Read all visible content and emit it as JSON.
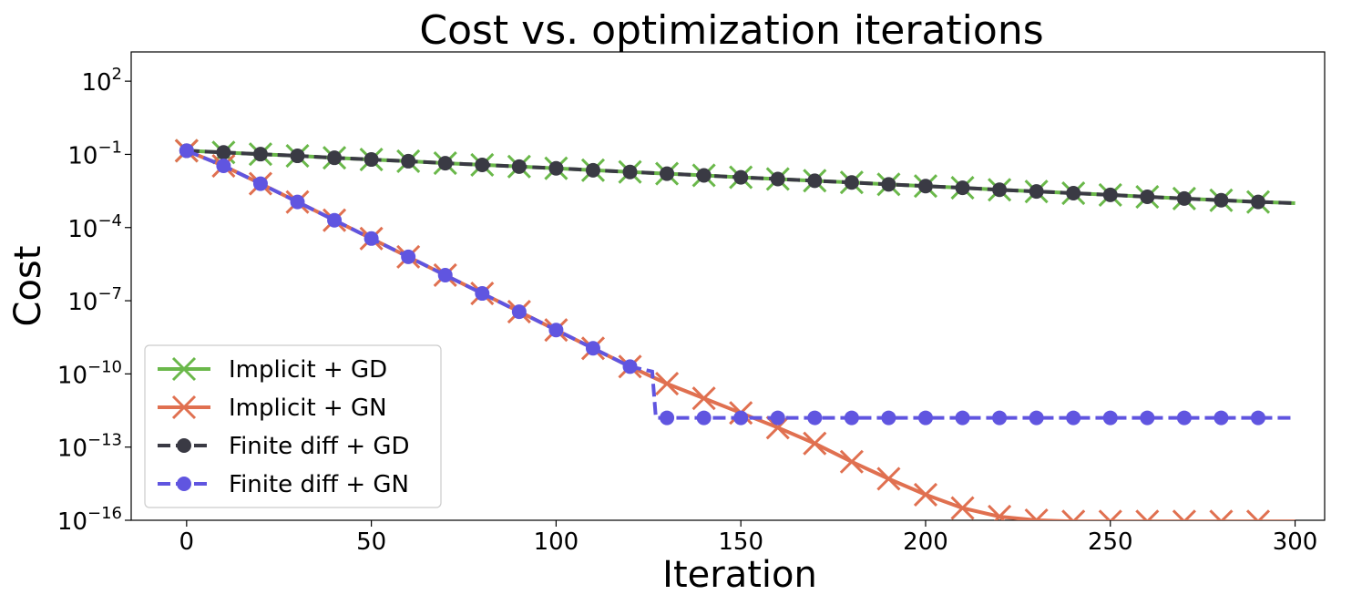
{
  "chart_data": {
    "type": "line",
    "title": "Cost vs. optimization iterations",
    "xlabel": "Iteration",
    "ylabel": "Cost",
    "yscale": "log",
    "xlim": [
      -15,
      308
    ],
    "ylim_exp": [
      -16,
      3.2
    ],
    "xticks": [
      0,
      50,
      100,
      150,
      200,
      250,
      300
    ],
    "xtick_labels": [
      "0",
      "50",
      "100",
      "150",
      "200",
      "250",
      "300"
    ],
    "yticks_exp": [
      2,
      -1,
      -4,
      -7,
      -10,
      -13,
      -16
    ],
    "ytick_base": "10",
    "ytick_exponents": [
      "2",
      "−1",
      "−4",
      "−7",
      "−10",
      "−13",
      "−16"
    ],
    "legend_position": "lower-left",
    "series": [
      {
        "name": "Implicit + GD",
        "color": "#6ab84a",
        "linestyle": "solid",
        "marker": "x",
        "x": [
          0,
          10,
          20,
          30,
          40,
          50,
          60,
          70,
          80,
          90,
          100,
          110,
          120,
          130,
          140,
          150,
          160,
          170,
          180,
          190,
          200,
          210,
          220,
          230,
          240,
          250,
          260,
          270,
          280,
          290
        ],
        "log10_y": [
          -0.85,
          -0.92,
          -0.99,
          -1.06,
          -1.14,
          -1.21,
          -1.28,
          -1.36,
          -1.43,
          -1.5,
          -1.57,
          -1.65,
          -1.72,
          -1.79,
          -1.86,
          -1.94,
          -2.01,
          -2.08,
          -2.15,
          -2.23,
          -2.3,
          -2.37,
          -2.45,
          -2.52,
          -2.59,
          -2.66,
          -2.74,
          -2.81,
          -2.88,
          -2.95
        ]
      },
      {
        "name": "Implicit + GN",
        "color": "#e07050",
        "linestyle": "solid",
        "marker": "x",
        "x": [
          0,
          10,
          20,
          30,
          40,
          50,
          60,
          70,
          80,
          90,
          100,
          110,
          120,
          130,
          140,
          150,
          160,
          170,
          180,
          190,
          200,
          210,
          220,
          230,
          240,
          250,
          260,
          270,
          280,
          290
        ],
        "log10_y": [
          -0.85,
          -1.47,
          -2.2,
          -2.95,
          -3.7,
          -4.45,
          -5.2,
          -5.95,
          -6.7,
          -7.45,
          -8.2,
          -8.95,
          -9.7,
          -10.4,
          -11.0,
          -11.6,
          -12.2,
          -12.85,
          -13.6,
          -14.3,
          -14.95,
          -15.5,
          -15.85,
          -16.0,
          -16.05,
          -16.05,
          -16.05,
          -16.05,
          -16.05,
          -16.05
        ]
      },
      {
        "name": "Finite diff + GD",
        "color": "#3a3a44",
        "linestyle": "dashed",
        "marker": "o",
        "x": [
          0,
          10,
          20,
          30,
          40,
          50,
          60,
          70,
          80,
          90,
          100,
          110,
          120,
          130,
          140,
          150,
          160,
          170,
          180,
          190,
          200,
          210,
          220,
          230,
          240,
          250,
          260,
          270,
          280,
          290
        ],
        "log10_y": [
          -0.85,
          -0.92,
          -0.99,
          -1.06,
          -1.14,
          -1.21,
          -1.28,
          -1.36,
          -1.43,
          -1.5,
          -1.57,
          -1.65,
          -1.72,
          -1.79,
          -1.86,
          -1.94,
          -2.01,
          -2.08,
          -2.15,
          -2.23,
          -2.3,
          -2.37,
          -2.45,
          -2.52,
          -2.59,
          -2.66,
          -2.74,
          -2.81,
          -2.88,
          -2.95
        ]
      },
      {
        "name": "Finite diff + GN",
        "color": "#6055e0",
        "linestyle": "dashed",
        "marker": "o",
        "x": [
          0,
          10,
          20,
          30,
          40,
          50,
          60,
          70,
          80,
          90,
          100,
          110,
          120,
          130,
          140,
          150,
          160,
          170,
          180,
          190,
          200,
          210,
          220,
          230,
          240,
          250,
          260,
          270,
          280,
          290
        ],
        "log10_y": [
          -0.85,
          -1.47,
          -2.2,
          -2.95,
          -3.7,
          -4.45,
          -5.2,
          -5.95,
          -6.7,
          -7.45,
          -8.2,
          -8.95,
          -9.7,
          -11.8,
          -11.8,
          -11.8,
          -11.8,
          -11.8,
          -11.8,
          -11.8,
          -11.8,
          -11.8,
          -11.8,
          -11.8,
          -11.8,
          -11.8,
          -11.8,
          -11.8,
          -11.8,
          -11.8
        ]
      }
    ],
    "line_ends": {
      "Implicit + GD": {
        "x": 300,
        "log10_y": -3.0
      },
      "Implicit + GN": {
        "x": 300,
        "log10_y": -16.05
      },
      "Finite diff + GD": {
        "x": 300,
        "log10_y": -3.0
      },
      "Finite diff + GN": {
        "x": 300,
        "log10_y": -11.8
      }
    },
    "gn_jump": {
      "x_before": 126,
      "log10_before": -9.9,
      "x_after": 127,
      "log10_after": -11.8
    }
  }
}
